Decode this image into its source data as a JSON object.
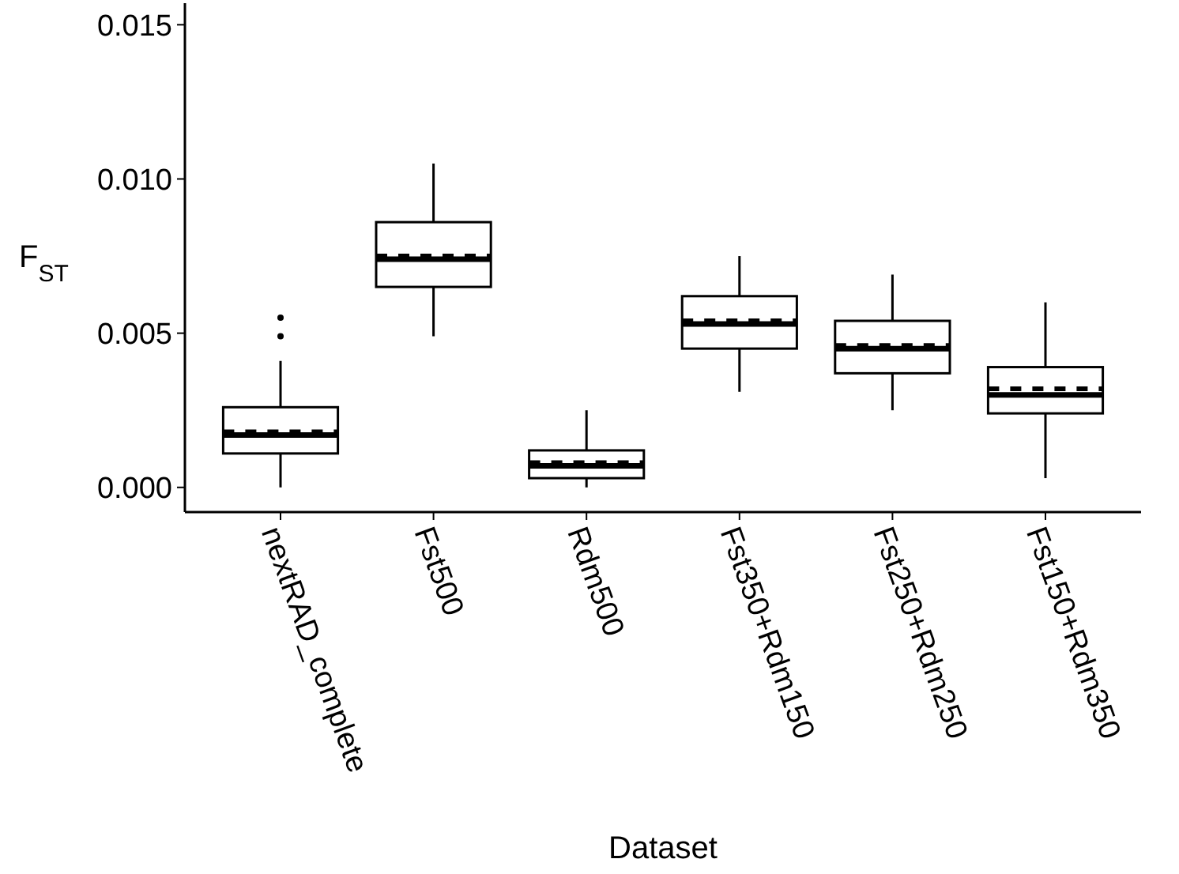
{
  "chart_data": {
    "type": "box",
    "xlabel": "Dataset",
    "ylabel": "F$_{ST}$",
    "categories": [
      "nextRAD_complete",
      "Fst500",
      "Rdm500",
      "Fst350+Rdm150",
      "Fst250+Rdm250",
      "Fst150+Rdm350"
    ],
    "boxes": [
      {
        "low": 0,
        "q1": 0.0011,
        "median": 0.0017,
        "q3": 0.0026,
        "high": 0.0041,
        "mean": 0.0018,
        "outliers": [
          0.0049,
          0.0055
        ]
      },
      {
        "low": 0.0049,
        "q1": 0.0065,
        "median": 0.0074,
        "q3": 0.0086,
        "high": 0.0105,
        "mean": 0.0075
      },
      {
        "low": 0,
        "q1": 0.0003,
        "median": 0.0007,
        "q3": 0.0012,
        "high": 0.0025,
        "mean": 0.0008
      },
      {
        "low": 0.0031,
        "q1": 0.0045,
        "median": 0.0053,
        "q3": 0.0062,
        "high": 0.0075,
        "mean": 0.0054
      },
      {
        "low": 0.0025,
        "q1": 0.0037,
        "median": 0.0045,
        "q3": 0.0054,
        "high": 0.0069,
        "mean": 0.0046
      },
      {
        "low": 0.0003,
        "q1": 0.0024,
        "median": 0.003,
        "q3": 0.0039,
        "high": 0.006,
        "mean": 0.0032
      }
    ],
    "ylim": [
      -0.0008,
      0.0157
    ],
    "yticks": [
      {
        "value": 0,
        "label": "0.000"
      },
      {
        "value": 0.005,
        "label": "0.005"
      },
      {
        "value": 0.01,
        "label": "0.010"
      },
      {
        "value": 0.015,
        "label": "0.015"
      }
    ],
    "grid": false
  }
}
